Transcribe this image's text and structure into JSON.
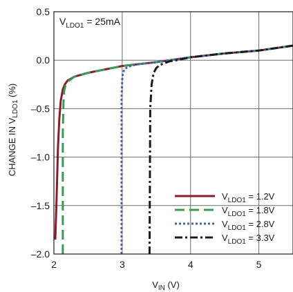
{
  "chart_data": {
    "type": "line",
    "annotation": {
      "main": "V",
      "sub": "LDO1",
      "rest": " = 25mA"
    },
    "xlabel": {
      "main": "V",
      "sub": "IN",
      "rest": " (V)"
    },
    "ylabel": {
      "pre": "CHANGE IN V",
      "sub": "LDO1",
      "rest": " (%)"
    },
    "xlim": [
      2,
      5.5
    ],
    "ylim": [
      -2.0,
      0.5
    ],
    "xticks": [
      2,
      3,
      4,
      5
    ],
    "xtick_labels": [
      "2",
      "3",
      "4",
      "5"
    ],
    "yticks": [
      0.5,
      0.0,
      -0.5,
      -1.0,
      -1.5,
      -2.0
    ],
    "ytick_labels": [
      "0.5",
      "0.0",
      "–0.5",
      "–1.0",
      "–1.5",
      "–2.0"
    ],
    "grid": true,
    "legend_position": "bottom-right",
    "series": [
      {
        "name": "V_LDO1 = 1.2V",
        "label": {
          "main": "V",
          "sub": "LDO1",
          "rest": " = 1.2V"
        },
        "color": "#8b1a2b",
        "dash": "solid",
        "x": [
          2.02,
          2.04,
          2.06,
          2.08,
          2.1,
          2.13,
          2.16,
          2.2,
          2.3,
          2.5,
          3.0,
          3.5,
          4.0,
          4.5,
          5.0,
          5.5
        ],
        "y": [
          -1.85,
          -1.4,
          -0.9,
          -0.6,
          -0.42,
          -0.3,
          -0.25,
          -0.21,
          -0.17,
          -0.13,
          -0.06,
          -0.02,
          0.03,
          0.07,
          0.1,
          0.15
        ]
      },
      {
        "name": "V_LDO1 = 1.8V",
        "label": {
          "main": "V",
          "sub": "LDO1",
          "rest": " = 1.8V"
        },
        "color": "#3a9a52",
        "dash": "long-dash",
        "x": [
          2.13,
          2.13,
          2.14,
          2.15,
          2.17,
          2.2,
          2.3,
          2.5,
          3.0,
          3.5,
          4.0,
          4.5,
          5.0,
          5.5
        ],
        "y": [
          -2.0,
          -0.75,
          -0.45,
          -0.32,
          -0.26,
          -0.22,
          -0.17,
          -0.13,
          -0.06,
          -0.02,
          0.03,
          0.07,
          0.1,
          0.15
        ]
      },
      {
        "name": "V_LDO1 = 2.8V",
        "label": {
          "main": "V",
          "sub": "LDO1",
          "rest": " = 2.8V"
        },
        "color": "#4a5ea8",
        "dash": "dotted",
        "x": [
          2.99,
          2.99,
          3.0,
          3.01,
          3.03,
          3.06,
          3.1,
          3.2,
          3.5,
          4.0,
          4.5,
          5.0,
          5.5
        ],
        "y": [
          -2.0,
          -0.4,
          -0.2,
          -0.13,
          -0.1,
          -0.08,
          -0.065,
          -0.045,
          -0.02,
          0.03,
          0.07,
          0.1,
          0.15
        ]
      },
      {
        "name": "V_LDO1 = 3.3V",
        "label": {
          "main": "V",
          "sub": "LDO1",
          "rest": " = 3.3V"
        },
        "color": "#1a1a1a",
        "dash": "dash-dot",
        "x": [
          3.4,
          3.41,
          3.43,
          3.46,
          3.5,
          3.55,
          3.62,
          3.7,
          3.8,
          4.0,
          4.5,
          5.0,
          5.5
        ],
        "y": [
          -2.0,
          -0.5,
          -0.25,
          -0.13,
          -0.08,
          -0.05,
          -0.03,
          -0.01,
          0.0,
          0.03,
          0.07,
          0.1,
          0.15
        ]
      }
    ]
  }
}
